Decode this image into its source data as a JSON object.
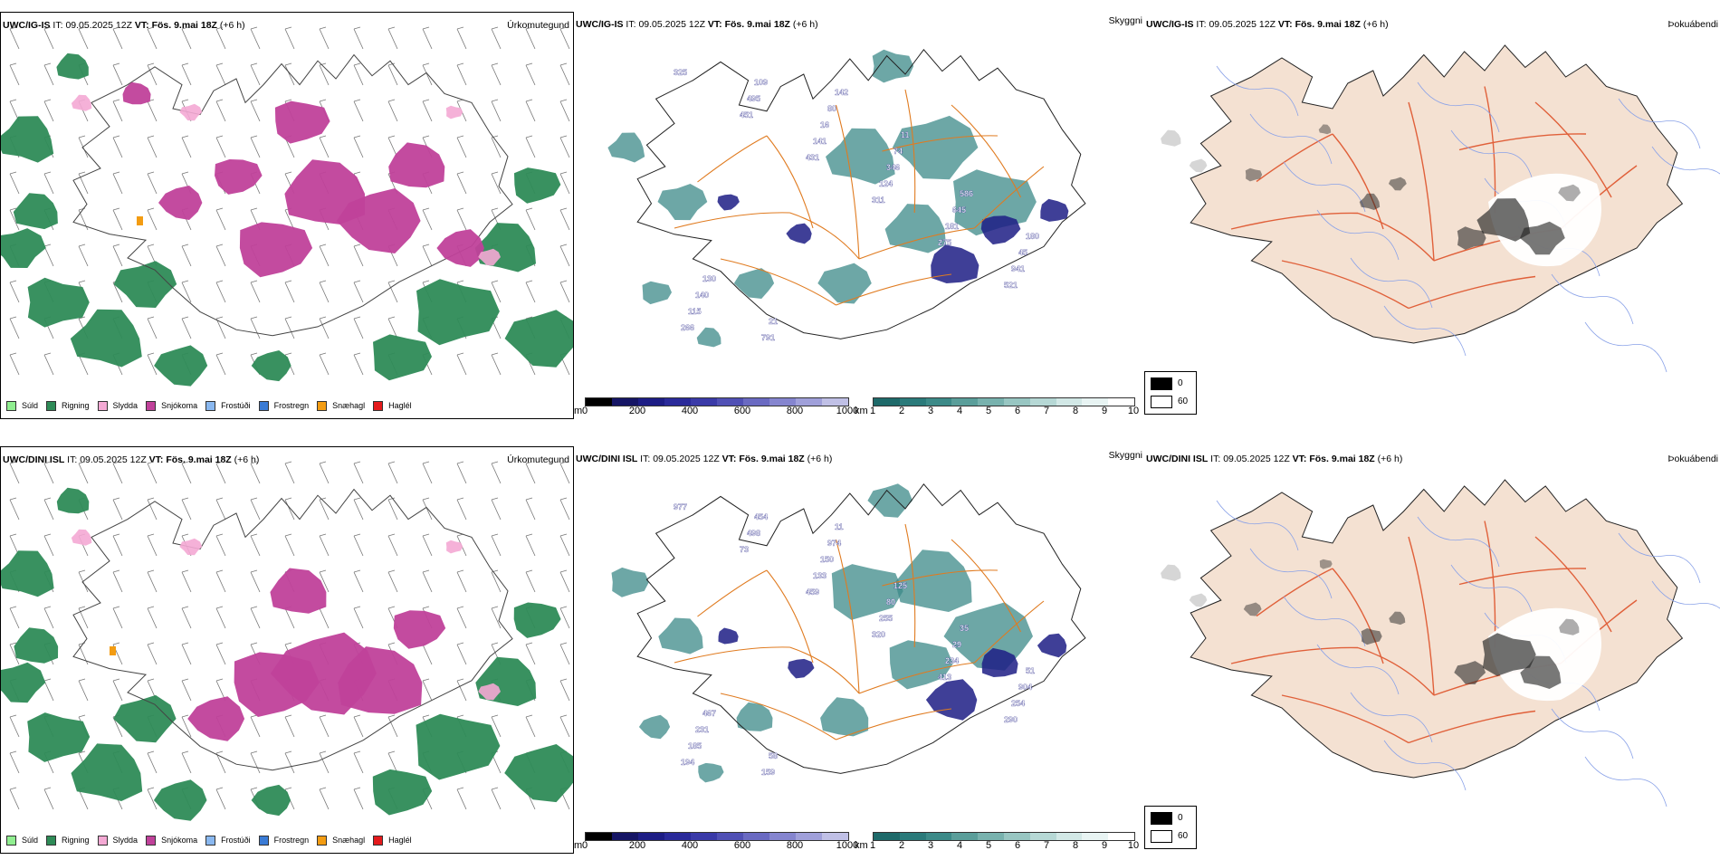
{
  "rows": [
    {
      "model": "UWC/IG-IS",
      "it_label": "IT:",
      "it_value": "09.05.2025 12Z",
      "vt_label": "VT:",
      "vt_value": "Fös. 9.mai 18Z",
      "lead": "(+6 h)"
    },
    {
      "model": "UWC/DINI ISL",
      "it_label": "IT:",
      "it_value": "09.05.2025 12Z",
      "vt_label": "VT:",
      "vt_value": "Fös. 9.mai 18Z",
      "lead": "(+6 h)"
    }
  ],
  "panel_titles": {
    "precip": "Úrkomutegund",
    "cloud": "Skyggni",
    "fog": "Þokuábendi"
  },
  "precip_legend": [
    {
      "label": "Súld",
      "color": "#90ee90"
    },
    {
      "label": "Rigning",
      "color": "#2e8b57"
    },
    {
      "label": "Slydda",
      "color": "#f4a9d4"
    },
    {
      "label": "Snjókoma",
      "color": "#c0419a"
    },
    {
      "label": "Frostúði",
      "color": "#8ab8f0"
    },
    {
      "label": "Frostregn",
      "color": "#3a7bd5"
    },
    {
      "label": "Snæhagl",
      "color": "#f39c12"
    },
    {
      "label": "Haglél",
      "color": "#e41a1c"
    }
  ],
  "cloudbase_bar": {
    "unit": "m",
    "ticks": [
      "0",
      "200",
      "400",
      "600",
      "800",
      "1000"
    ],
    "colors": [
      "#000000",
      "#151565",
      "#1d1d85",
      "#2a2a9a",
      "#3a3aa8",
      "#5050b5",
      "#6a6ac2",
      "#8585cf",
      "#a0a0da",
      "#c0c0e6"
    ]
  },
  "visibility_bar": {
    "unit": "km",
    "ticks": [
      "1",
      "2",
      "3",
      "4",
      "5",
      "6",
      "7",
      "8",
      "9",
      "10"
    ],
    "colors": [
      "#1e6a6a",
      "#2a7a7a",
      "#3c8a88",
      "#5a9e9a",
      "#78b2ae",
      "#98c6c2",
      "#b6d8d5",
      "#d2e8e6",
      "#e8f4f3",
      "#ffffff"
    ]
  },
  "fog_key": {
    "low": "0",
    "high": "60"
  },
  "cloud_labels_top": [
    "325",
    "451",
    "431",
    "311",
    "275",
    "521",
    "266",
    "495",
    "141",
    "124",
    "181",
    "941",
    "115",
    "109",
    "16",
    "346",
    "645",
    "45",
    "140",
    "791",
    "80",
    "74",
    "586",
    "180",
    "130",
    "21",
    "142",
    "11"
  ],
  "cloud_labels_bottom": [
    "977",
    "73",
    "459",
    "320",
    "413",
    "290",
    "194",
    "498",
    "133",
    "255",
    "234",
    "254",
    "185",
    "454",
    "150",
    "80",
    "29",
    "904",
    "231",
    "159",
    "974",
    "125",
    "35",
    "51",
    "467",
    "58",
    "11"
  ]
}
